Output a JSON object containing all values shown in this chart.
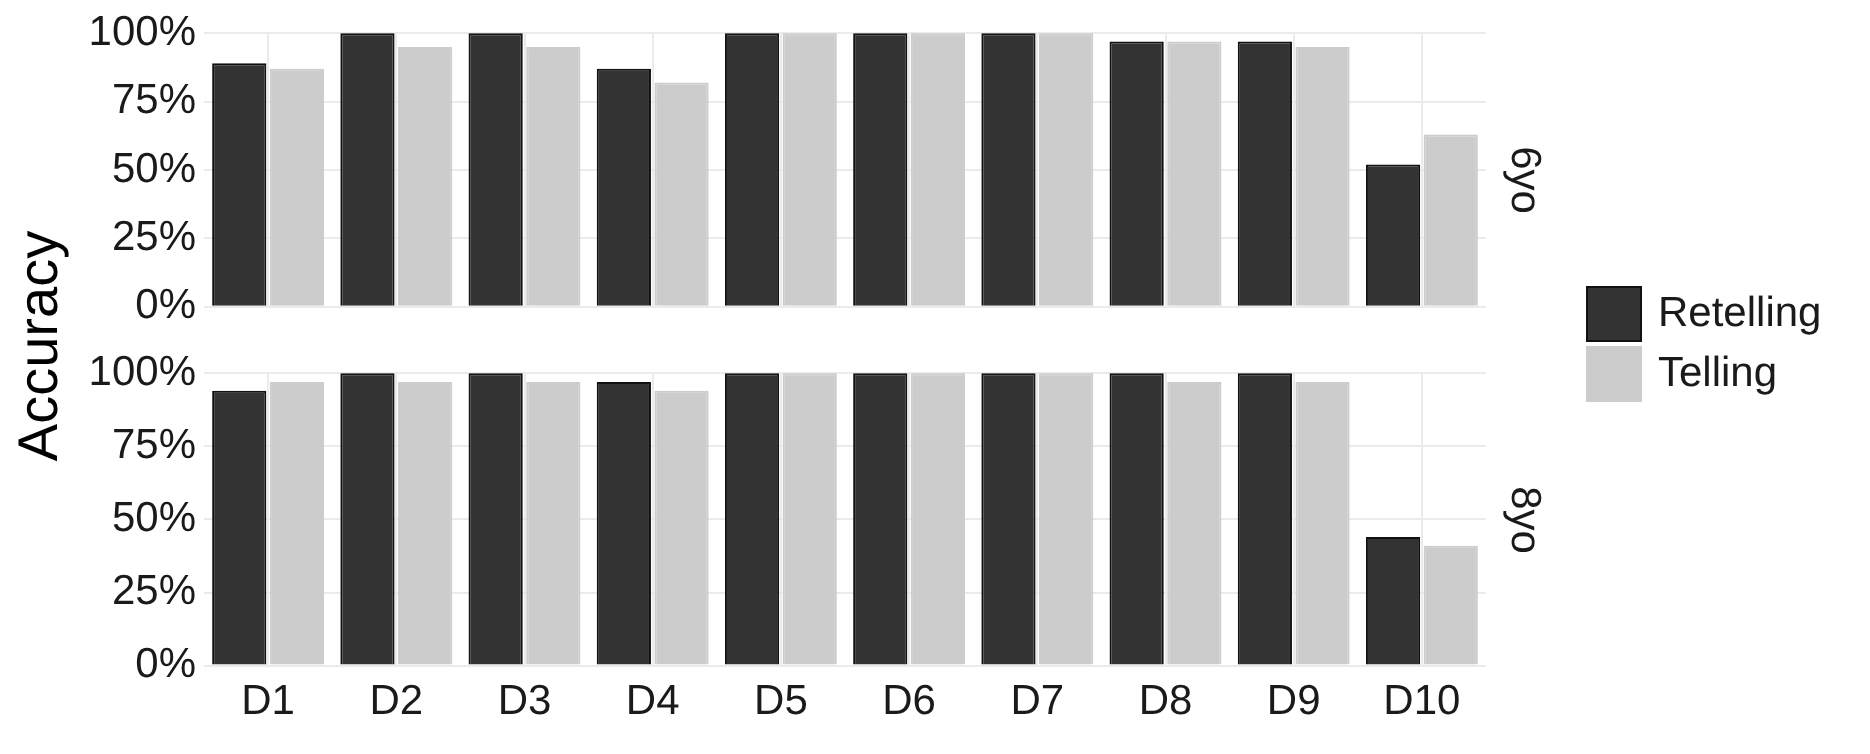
{
  "chart_data": [
    {
      "type": "bar",
      "title": "6yo",
      "ylabel": "Accuracy",
      "categories": [
        null,
        null,
        null,
        null,
        null,
        null,
        null,
        null,
        null,
        null
      ],
      "series": [
        {
          "name": "Retelling",
          "color": "#333333",
          "values": [
            89,
            100,
            100,
            87,
            100,
            100,
            100,
            97,
            97,
            52
          ]
        },
        {
          "name": "Telling",
          "color": "#cccccc",
          "values": [
            87,
            95,
            95,
            82,
            100,
            100,
            100,
            97,
            95,
            63
          ]
        }
      ],
      "ylim": [
        0,
        100
      ],
      "yticks": [
        {
          "value": 0,
          "label": "0%"
        },
        {
          "value": 25,
          "label": "25%"
        },
        {
          "value": 50,
          "label": "50%"
        },
        {
          "value": 75,
          "label": "75%"
        },
        {
          "value": 100,
          "label": "100%"
        }
      ],
      "grid": true,
      "legend": "right",
      "tick_labels": "y"
    },
    {
      "type": "bar",
      "title": "8yo",
      "categories": [
        "D1",
        "D2",
        "D3",
        "D4",
        "D5",
        "D6",
        "D7",
        "D8",
        "D9",
        "D10"
      ],
      "series": [
        {
          "color": "#333333",
          "values": [
            94,
            100,
            100,
            97,
            100,
            100,
            100,
            100,
            100,
            44
          ]
        },
        {
          "color": "#cccccc",
          "values": [
            97,
            97,
            97,
            94,
            100,
            100,
            100,
            97,
            97,
            41
          ]
        }
      ],
      "ylim": [
        0,
        100
      ],
      "yticks": [
        {
          "value": 0,
          "label": "0%"
        },
        {
          "value": 25,
          "label": "25%"
        },
        {
          "value": 50,
          "label": "50%"
        },
        {
          "value": 75,
          "label": "75%"
        },
        {
          "value": 100,
          "label": "100%"
        }
      ],
      "grid": true
    }
  ]
}
